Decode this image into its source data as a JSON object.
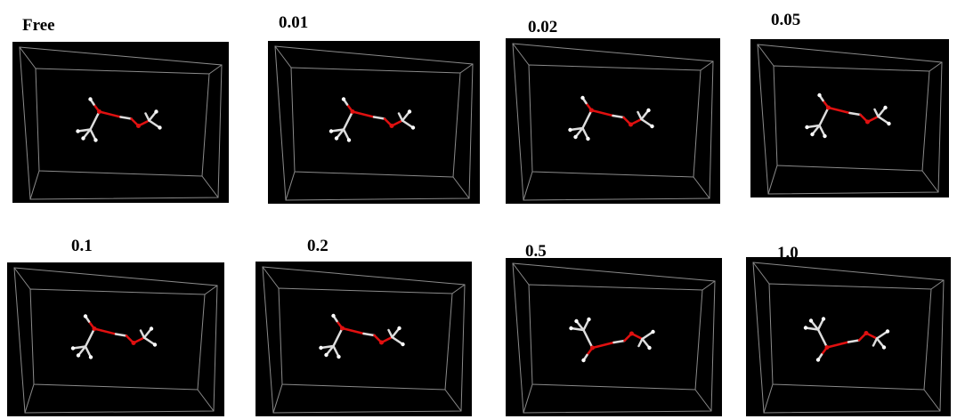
{
  "panels": [
    {
      "label": "Free"
    },
    {
      "label": "0.01"
    },
    {
      "label": "0.02"
    },
    {
      "label": "0.05"
    },
    {
      "label": "0.1"
    },
    {
      "label": "0.2"
    },
    {
      "label": "0.5"
    },
    {
      "label": "1.0"
    }
  ]
}
